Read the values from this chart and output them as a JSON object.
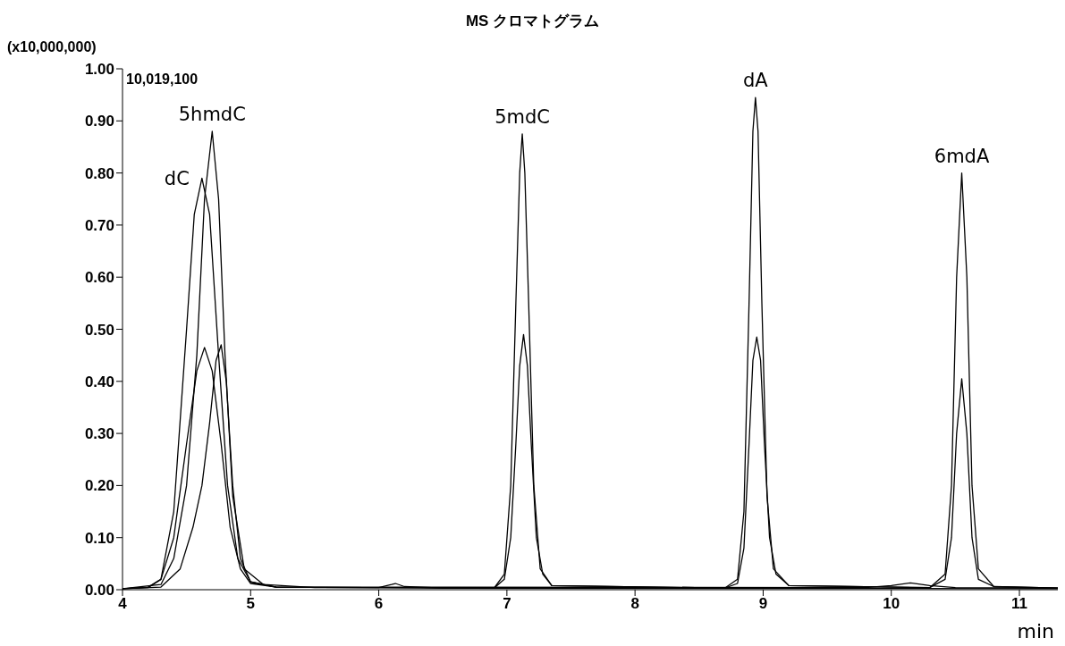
{
  "chart_data": {
    "type": "line",
    "title": "MS クロマトグラム",
    "xlabel": "min",
    "ylabel": "(x10,000,000)",
    "marker": "none",
    "line_style": "solid",
    "xlim": [
      4,
      11.3
    ],
    "xticks": [
      4,
      5,
      6,
      7,
      8,
      9,
      10,
      11
    ],
    "ylim": [
      0,
      1
    ],
    "yticks": [
      {
        "value": 0,
        "label": "0.00"
      },
      {
        "value": 0.1,
        "label": "0.10"
      },
      {
        "value": 0.2,
        "label": "0.20"
      },
      {
        "value": 0.3,
        "label": "0.30"
      },
      {
        "value": 0.4,
        "label": "0.40"
      },
      {
        "value": 0.5,
        "label": "0.50"
      },
      {
        "value": 0.6,
        "label": "0.60"
      },
      {
        "value": 0.7,
        "label": "0.70"
      },
      {
        "value": 0.8,
        "label": "0.80"
      },
      {
        "value": 0.9,
        "label": "0.90"
      },
      {
        "value": 1,
        "label": "1.00"
      }
    ],
    "series": [
      {
        "color": "#000000",
        "x": [
          4.0,
          4.2,
          4.3,
          4.4,
          4.5,
          4.56,
          4.62,
          4.68,
          4.75,
          4.82,
          4.9,
          5.0,
          5.2,
          6.9,
          6.98,
          7.03,
          7.07,
          7.1,
          7.12,
          7.14,
          7.17,
          7.21,
          7.26,
          7.35,
          8.7,
          8.8,
          8.85,
          8.89,
          8.92,
          8.94,
          8.96,
          8.99,
          9.03,
          9.08,
          9.2,
          10.3,
          10.42,
          10.47,
          10.51,
          10.55,
          10.59,
          10.63,
          10.68,
          10.8,
          11.3
        ],
        "values": [
          0.002,
          0.004,
          0.02,
          0.15,
          0.5,
          0.72,
          0.79,
          0.72,
          0.45,
          0.2,
          0.06,
          0.015,
          0.005,
          0.003,
          0.03,
          0.2,
          0.55,
          0.8,
          0.875,
          0.8,
          0.55,
          0.2,
          0.04,
          0.008,
          0.003,
          0.02,
          0.15,
          0.55,
          0.88,
          0.945,
          0.88,
          0.55,
          0.18,
          0.04,
          0.008,
          0.004,
          0.03,
          0.2,
          0.6,
          0.8,
          0.6,
          0.2,
          0.04,
          0.006,
          0.003
        ]
      },
      {
        "color": "#000000",
        "x": [
          4.0,
          4.3,
          4.4,
          4.5,
          4.58,
          4.64,
          4.7,
          4.75,
          4.8,
          4.86,
          4.95,
          5.1,
          5.5,
          6.0,
          6.1,
          6.13,
          6.2,
          6.5,
          11.3
        ],
        "values": [
          0.002,
          0.01,
          0.06,
          0.2,
          0.45,
          0.75,
          0.88,
          0.75,
          0.45,
          0.18,
          0.04,
          0.01,
          0.004,
          0.004,
          0.01,
          0.012,
          0.006,
          0.003,
          0.002
        ]
      },
      {
        "color": "#000000",
        "x": [
          4.0,
          4.2,
          4.3,
          4.4,
          4.5,
          4.58,
          4.64,
          4.7,
          4.77,
          4.84,
          4.92,
          5.0,
          5.2,
          6.9,
          6.98,
          7.03,
          7.07,
          7.1,
          7.13,
          7.16,
          7.19,
          7.23,
          7.28,
          7.35,
          8.7,
          8.8,
          8.85,
          8.89,
          8.92,
          8.95,
          8.98,
          9.01,
          9.05,
          9.1,
          9.2,
          10.3,
          10.42,
          10.47,
          10.51,
          10.55,
          10.59,
          10.63,
          10.68,
          10.8,
          11.3
        ],
        "values": [
          0.002,
          0.005,
          0.02,
          0.1,
          0.28,
          0.42,
          0.465,
          0.42,
          0.28,
          0.12,
          0.04,
          0.012,
          0.005,
          0.003,
          0.02,
          0.1,
          0.28,
          0.43,
          0.49,
          0.43,
          0.28,
          0.1,
          0.03,
          0.008,
          0.003,
          0.012,
          0.08,
          0.28,
          0.44,
          0.485,
          0.44,
          0.28,
          0.1,
          0.03,
          0.008,
          0.004,
          0.02,
          0.1,
          0.3,
          0.405,
          0.3,
          0.1,
          0.02,
          0.006,
          0.003
        ]
      },
      {
        "color": "#000000",
        "x": [
          4.0,
          4.3,
          4.45,
          4.55,
          4.62,
          4.68,
          4.73,
          4.77,
          4.81,
          4.86,
          4.92,
          5.0,
          5.2,
          9.8,
          10.0,
          10.15,
          10.3,
          10.5,
          11.3
        ],
        "values": [
          0.002,
          0.005,
          0.04,
          0.12,
          0.2,
          0.32,
          0.44,
          0.47,
          0.4,
          0.2,
          0.06,
          0.015,
          0.005,
          0.004,
          0.008,
          0.013,
          0.008,
          0.004,
          0.003
        ]
      }
    ],
    "annotations": [
      "10,019,100",
      {
        "text": "dC",
        "x": 4.62,
        "y": 0.79
      },
      {
        "text": "5hmdC",
        "x": 4.7,
        "y": 0.88
      },
      {
        "text": "5mdC",
        "x": 7.12,
        "y": 0.875
      },
      {
        "text": "dA",
        "x": 8.94,
        "y": 0.945
      },
      {
        "text": "6mdA",
        "x": 10.55,
        "y": 0.8
      }
    ]
  }
}
